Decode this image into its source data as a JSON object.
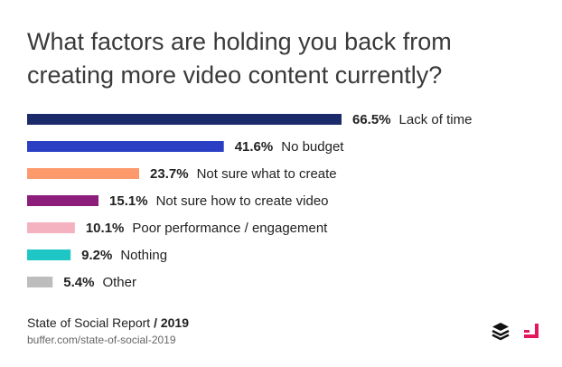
{
  "title": "What factors are holding you back from creating more video content currently?",
  "chart_data": {
    "type": "bar",
    "orientation": "horizontal",
    "categories": [
      "Lack of time",
      "No budget",
      "Not sure what to create",
      "Not sure how to create video",
      "Poor performance / engagement",
      "Nothing",
      "Other"
    ],
    "values": [
      66.5,
      41.6,
      23.7,
      15.1,
      10.1,
      9.2,
      5.4
    ],
    "value_labels": [
      "66.5%",
      "41.6%",
      "23.7%",
      "15.1%",
      "10.1%",
      "9.2%",
      "5.4%"
    ],
    "colors": [
      "#1b2a6b",
      "#2a3fc4",
      "#fd9a6c",
      "#8c1d7a",
      "#f4b1bf",
      "#1fc6c6",
      "#bdbdbd"
    ],
    "xlim": [
      0,
      66.5
    ],
    "grid": false,
    "legend": "none"
  },
  "footer": {
    "source_title": "State of Social Report",
    "separator": " / ",
    "source_year": "2019",
    "source_url": "buffer.com/state-of-social-2019"
  },
  "icons": {
    "brand_logo": "buffer-logo-icon",
    "partner_logo": "pink-corner-logo-icon"
  }
}
